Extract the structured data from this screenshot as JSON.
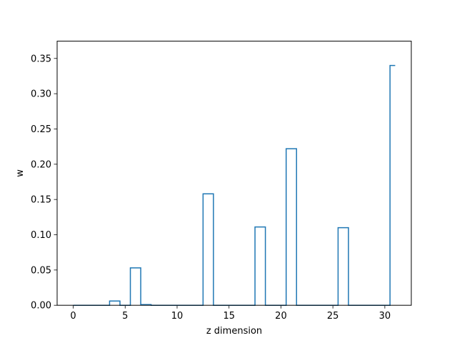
{
  "chart_data": {
    "type": "step",
    "xlabel": "z dimension",
    "ylabel": "w",
    "xlim": [
      -1.55,
      32.55
    ],
    "ylim": [
      0,
      0.3745
    ],
    "xticks": [
      0,
      5,
      10,
      15,
      20,
      25,
      30
    ],
    "xtick_labels": [
      "0",
      "5",
      "10",
      "15",
      "20",
      "25",
      "30"
    ],
    "yticks": [
      0.0,
      0.05,
      0.1,
      0.15,
      0.2,
      0.25,
      0.3,
      0.35
    ],
    "ytick_labels": [
      "0.00",
      "0.05",
      "0.10",
      "0.15",
      "0.20",
      "0.25",
      "0.30",
      "0.35"
    ],
    "step_where": "mid",
    "x": [
      0,
      1,
      2,
      3,
      4,
      5,
      6,
      7,
      8,
      9,
      10,
      11,
      12,
      13,
      14,
      15,
      16,
      17,
      18,
      19,
      20,
      21,
      22,
      23,
      24,
      25,
      26,
      27,
      28,
      29,
      30,
      31
    ],
    "values": [
      0,
      0,
      0,
      0,
      0.006,
      0,
      0.053,
      0.001,
      0,
      0,
      0,
      0,
      0,
      0.158,
      0,
      0,
      0,
      0,
      0.111,
      0,
      0,
      0.222,
      0,
      0,
      0,
      0,
      0.11,
      0,
      0,
      0,
      0,
      0.34
    ],
    "line_color": "#1f77b4",
    "grid": false
  }
}
